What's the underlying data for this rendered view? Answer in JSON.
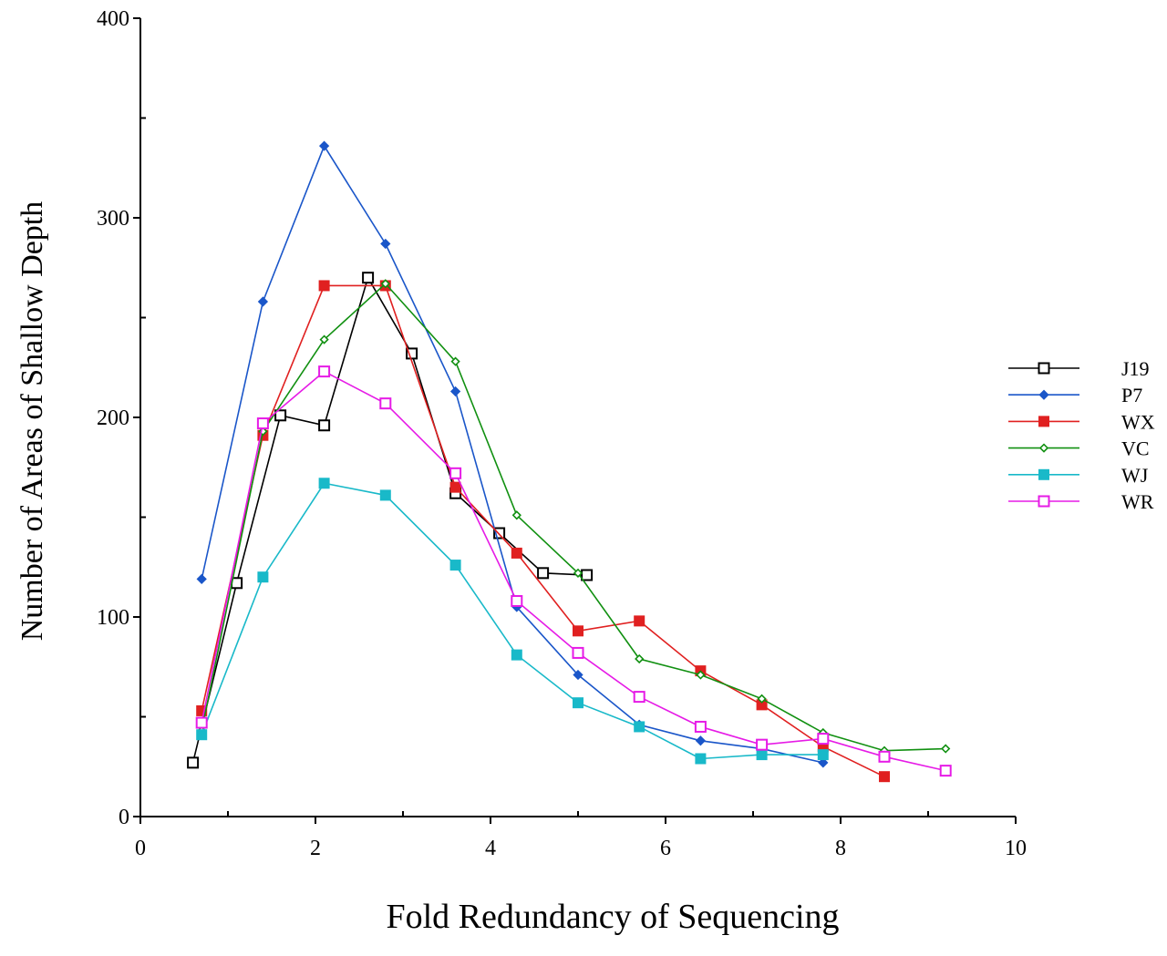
{
  "chart_data": {
    "type": "line",
    "title": "",
    "xlabel": "Fold Redundancy of Sequencing",
    "ylabel": "Number of Areas of Shallow Depth",
    "xlim": [
      0,
      10
    ],
    "ylim": [
      0,
      400
    ],
    "x_ticks": [
      0,
      2,
      4,
      6,
      8,
      10
    ],
    "y_ticks": [
      0,
      100,
      200,
      300,
      400
    ],
    "x_tick_labels": [
      "0",
      "2",
      "4",
      "6",
      "8",
      "10"
    ],
    "y_tick_labels": [
      "0",
      "100",
      "200",
      "300",
      "400"
    ],
    "grid": false,
    "legend_position": "right",
    "series": [
      {
        "name": "J19",
        "color": "#000000",
        "marker": "square-open",
        "x": [
          0.6,
          1.1,
          1.6,
          2.1,
          2.6,
          3.1,
          3.6,
          4.1,
          4.6,
          5.1
        ],
        "y": [
          27,
          117,
          201,
          196,
          270,
          232,
          162,
          142,
          122,
          121
        ]
      },
      {
        "name": "P7",
        "color": "#1a56c9",
        "marker": "diamond-filled",
        "x": [
          0.7,
          1.4,
          2.1,
          2.8,
          3.6,
          4.3,
          5.0,
          5.7,
          6.4,
          7.1,
          7.8
        ],
        "y": [
          119,
          258,
          336,
          287,
          213,
          105,
          71,
          46,
          38,
          34,
          27
        ]
      },
      {
        "name": "WX",
        "color": "#e02020",
        "marker": "square-filled",
        "x": [
          0.7,
          1.4,
          2.1,
          2.8,
          3.6,
          4.3,
          5.0,
          5.7,
          6.4,
          7.1,
          7.8,
          8.5
        ],
        "y": [
          53,
          191,
          266,
          266,
          165,
          132,
          93,
          98,
          73,
          56,
          35,
          20
        ]
      },
      {
        "name": "VC",
        "color": "#119011",
        "marker": "diamond-open",
        "x": [
          0.7,
          1.4,
          2.1,
          2.8,
          3.6,
          4.3,
          5.0,
          5.7,
          6.4,
          7.1,
          7.8,
          8.5,
          9.2
        ],
        "y": [
          43,
          193,
          239,
          267,
          228,
          151,
          122,
          79,
          71,
          59,
          42,
          33,
          34
        ]
      },
      {
        "name": "WJ",
        "color": "#19b9c9",
        "marker": "square-filled",
        "x": [
          0.7,
          1.4,
          2.1,
          2.8,
          3.6,
          4.3,
          5.0,
          5.7,
          6.4,
          7.1,
          7.8
        ],
        "y": [
          41,
          120,
          167,
          161,
          126,
          81,
          57,
          45,
          29,
          31,
          31
        ]
      },
      {
        "name": "WR",
        "color": "#e61be6",
        "marker": "square-open",
        "x": [
          0.7,
          1.4,
          2.1,
          2.8,
          3.6,
          4.3,
          5.0,
          5.7,
          6.4,
          7.1,
          7.8,
          8.5,
          9.2
        ],
        "y": [
          47,
          197,
          223,
          207,
          172,
          108,
          82,
          60,
          45,
          36,
          39,
          30,
          23
        ]
      }
    ]
  }
}
